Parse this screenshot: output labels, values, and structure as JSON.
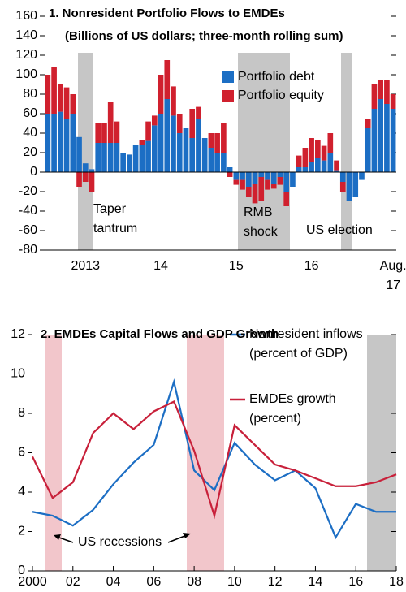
{
  "chart_data": [
    {
      "type": "stacked_bar",
      "title": "1. Nonresident Portfolio Flows to EMDEs",
      "subtitle": "(Billions of US dollars; three-month rolling sum)",
      "categories": [
        null,
        null,
        null,
        null,
        null,
        null,
        "2013",
        null,
        null,
        null,
        null,
        null,
        null,
        null,
        null,
        null,
        null,
        null,
        "14",
        null,
        null,
        null,
        null,
        null,
        null,
        null,
        null,
        null,
        null,
        null,
        "15",
        null,
        null,
        null,
        null,
        null,
        null,
        null,
        null,
        null,
        null,
        null,
        "16",
        null,
        null,
        null,
        null,
        null,
        null,
        null,
        null,
        null,
        null,
        null,
        null,
        "Aug. 17"
      ],
      "series": [
        {
          "name": "Portfolio debt",
          "color": "#1c6ec4",
          "values": [
            60,
            60,
            62,
            55,
            60,
            36,
            9,
            3,
            30,
            30,
            30,
            30,
            20,
            18,
            28,
            28,
            32,
            48,
            60,
            75,
            58,
            40,
            45,
            35,
            55,
            35,
            25,
            20,
            20,
            5,
            -8,
            -8,
            -15,
            -12,
            -5,
            -8,
            -12,
            -5,
            -20,
            -15,
            5,
            5,
            10,
            15,
            12,
            20,
            2,
            -10,
            -30,
            -25,
            -8,
            45,
            65,
            75,
            70,
            65
          ]
        },
        {
          "name": "Portfolio equity",
          "color": "#d0202e",
          "values": [
            40,
            48,
            28,
            32,
            20,
            -15,
            -10,
            -20,
            20,
            20,
            42,
            22,
            0,
            0,
            0,
            5,
            20,
            10,
            40,
            40,
            30,
            20,
            0,
            30,
            12,
            0,
            15,
            20,
            30,
            -5,
            -5,
            -10,
            -10,
            -20,
            -25,
            -10,
            -5,
            -8,
            -15,
            0,
            12,
            20,
            25,
            18,
            15,
            20,
            10,
            -10,
            0,
            0,
            0,
            10,
            25,
            20,
            25,
            15
          ]
        }
      ],
      "ylim": [
        -80,
        160
      ],
      "yticks": [
        -80,
        -60,
        -40,
        -20,
        0,
        20,
        40,
        60,
        80,
        100,
        120,
        140,
        160
      ],
      "annotations": [
        "Taper tantrum",
        "RMB shock",
        "US election"
      ]
    },
    {
      "type": "line",
      "title": "2. EMDEs Capital Flows and GDP Growth",
      "x": [
        2000,
        2001,
        2002,
        2003,
        2004,
        2005,
        2006,
        2007,
        2008,
        2009,
        2010,
        2011,
        2012,
        2013,
        2014,
        2015,
        2016,
        2017,
        2018
      ],
      "series": [
        {
          "name": "Nonresident inflows (percent of GDP)",
          "color": "#1c6ec4",
          "values": [
            3.0,
            2.8,
            2.3,
            3.1,
            4.4,
            5.5,
            6.4,
            9.6,
            5.1,
            4.1,
            6.5,
            5.4,
            4.6,
            5.1,
            4.2,
            1.7,
            3.4,
            3.0,
            3.0
          ]
        },
        {
          "name": "EMDEs growth (percent)",
          "color": "#c8203a",
          "values": [
            5.8,
            3.7,
            4.5,
            7.0,
            8.0,
            7.2,
            8.1,
            8.6,
            6.1,
            2.8,
            7.4,
            6.4,
            5.4,
            5.1,
            4.7,
            4.3,
            4.3,
            4.5,
            4.9
          ]
        }
      ],
      "xlim": [
        2000,
        2018
      ],
      "xticks": [
        2000,
        {
          "value": 2002,
          "label": "02"
        },
        {
          "value": 2004,
          "label": "04"
        },
        {
          "value": 2006,
          "label": "06"
        },
        {
          "value": 2008,
          "label": "08"
        },
        {
          "value": 2010,
          "label": "10"
        },
        {
          "value": 2012,
          "label": "12"
        },
        {
          "value": 2014,
          "label": "14"
        },
        {
          "value": 2016,
          "label": "16"
        },
        {
          "value": 2018,
          "label": "18"
        }
      ],
      "ylim": [
        0,
        12
      ],
      "yticks": [
        0,
        2,
        4,
        6,
        8,
        10,
        12
      ],
      "annotations": [
        "US recessions"
      ]
    }
  ]
}
